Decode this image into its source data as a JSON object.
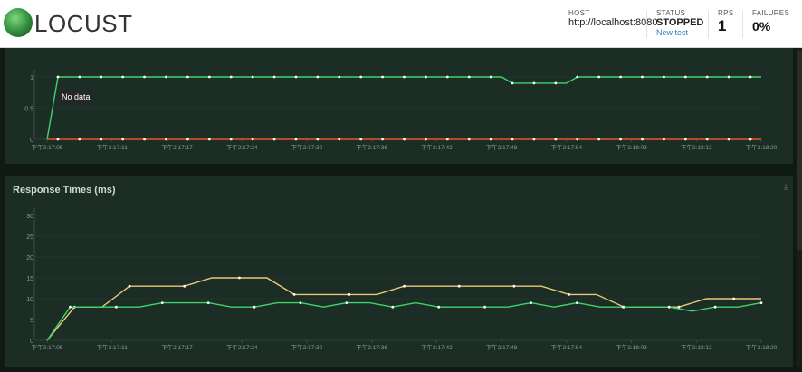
{
  "app": {
    "logo_text": "LOCUST"
  },
  "stats": {
    "host": {
      "label": "HOST",
      "value": "http://localhost:8080"
    },
    "status": {
      "label": "STATUS",
      "value": "STOPPED",
      "link": "New test"
    },
    "rps": {
      "label": "RPS",
      "value": "1"
    },
    "failures": {
      "label": "FAILURES",
      "value": "0%"
    }
  },
  "chart_top": {
    "no_data_label": "No data"
  },
  "chart_bottom": {
    "title": "Response Times (ms)",
    "download_icon": "download-icon"
  },
  "colors": {
    "green": "#3ed36b",
    "yellow": "#e9c878",
    "red": "#e8542c"
  },
  "chart_data": [
    {
      "type": "line",
      "x_ticks": [
        "下午2:17:05",
        "下午2:17:11",
        "下午2:17:17",
        "下午2:17:24",
        "下午2:17:30",
        "下午2:17:36",
        "下午2:17:42",
        "下午2:17:48",
        "下午2:17:54",
        "下午2:18:03",
        "下午2:18:12",
        "下午2:18:20"
      ],
      "y_ticks": [
        "0",
        "0.5",
        "1"
      ],
      "ylim": [
        0,
        1
      ],
      "series": [
        {
          "color": "#3ed36b",
          "values": [
            0,
            1,
            1,
            1,
            1,
            1,
            1,
            1,
            1,
            1,
            1,
            1,
            1,
            1,
            1,
            1,
            1,
            1,
            1,
            1,
            1,
            1,
            1,
            1,
            1,
            1,
            1,
            1,
            1,
            1,
            1,
            1,
            1,
            1,
            1,
            1,
            1,
            1,
            1,
            1,
            1,
            1,
            1,
            0.9,
            0.9,
            0.9,
            0.9,
            0.9,
            0.9,
            1,
            1,
            1,
            1,
            1,
            1,
            1,
            1,
            1,
            1,
            1,
            1,
            1,
            1,
            1,
            1,
            1,
            1
          ]
        },
        {
          "color": "#e8542c",
          "values": [
            0,
            0,
            0,
            0,
            0,
            0,
            0,
            0,
            0,
            0,
            0,
            0,
            0,
            0,
            0,
            0,
            0,
            0,
            0,
            0,
            0,
            0,
            0,
            0,
            0,
            0,
            0,
            0,
            0,
            0,
            0,
            0,
            0,
            0,
            0,
            0,
            0,
            0,
            0,
            0,
            0,
            0,
            0,
            0,
            0,
            0,
            0,
            0,
            0,
            0,
            0,
            0,
            0,
            0,
            0,
            0,
            0,
            0,
            0,
            0,
            0,
            0,
            0,
            0,
            0,
            0,
            0
          ]
        }
      ]
    },
    {
      "type": "line",
      "title": "Response Times (ms)",
      "x_ticks": [
        "下午2:17:05",
        "下午2:17:11",
        "下午2:17:17",
        "下午2:17:24",
        "下午2:17:30",
        "下午2:17:36",
        "下午2:17:42",
        "下午2:17:48",
        "下午2:17:54",
        "下午2:18:03",
        "下午2:18:12",
        "下午2:18:20"
      ],
      "y_ticks": [
        "0",
        "5",
        "10",
        "15",
        "20",
        "25",
        "30"
      ],
      "ylim": [
        0,
        30
      ],
      "series": [
        {
          "color": "#e9c878",
          "values": [
            0,
            8,
            8,
            13,
            13,
            13,
            15,
            15,
            15,
            11,
            11,
            11,
            11,
            13,
            13,
            13,
            13,
            13,
            13,
            11,
            11,
            8,
            8,
            8,
            10,
            10,
            10
          ]
        },
        {
          "color": "#3ed36b",
          "values": [
            0,
            8,
            8,
            8,
            8,
            9,
            9,
            9,
            8,
            8,
            9,
            9,
            8,
            9,
            9,
            8,
            9,
            8,
            8,
            8,
            8,
            9,
            8,
            9,
            8,
            8,
            8,
            8,
            7,
            8,
            8,
            9
          ]
        }
      ]
    }
  ]
}
